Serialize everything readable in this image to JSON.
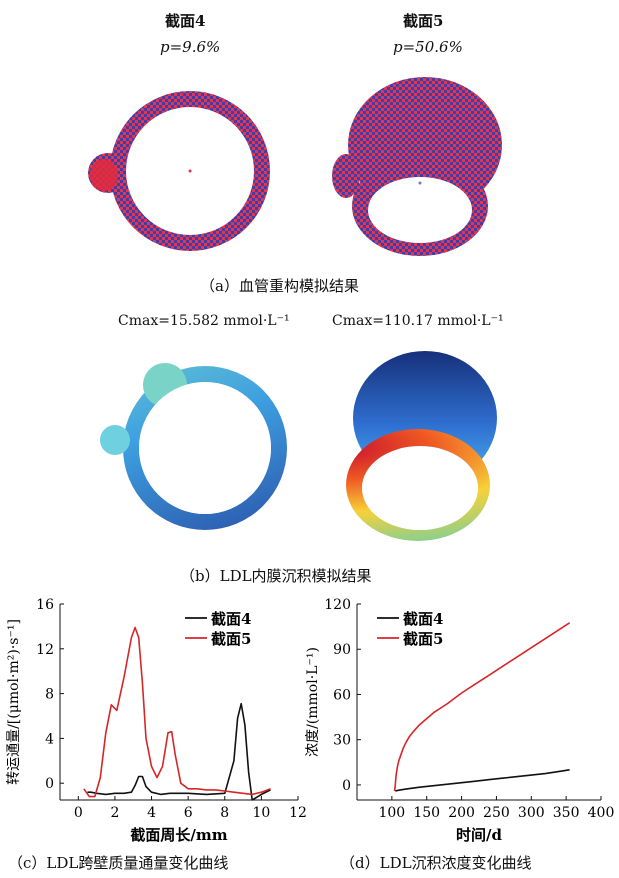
{
  "panel_a": {
    "s4_title": "截面4",
    "s4_p": "p=9.6%",
    "s5_title": "截面5",
    "s5_p": "p=50.6%",
    "caption": "（a）血管重构模拟结果"
  },
  "panel_b": {
    "cmax_left": "Cmax=15.582 mmol·L⁻¹",
    "cmax_right": "Cmax=110.17 mmol·L⁻¹",
    "caption": "（b）LDL内膜沉积模拟结果"
  },
  "panel_c_caption": "（c）LDL跨壁质量通量变化曲线",
  "panel_d_caption": "（d）LDL沉积浓度变化曲线",
  "colors": {
    "s4": "#111111",
    "s5": "#d62728"
  },
  "chart_data": [
    {
      "type": "line",
      "xlabel": "截面周长/mm",
      "ylabel": "转运通量/[(μmol·m²)·s⁻¹]",
      "xlim": [
        -1,
        12
      ],
      "ylim": [
        -1.5,
        16
      ],
      "xticks": [
        0,
        2,
        4,
        6,
        8,
        10,
        12
      ],
      "yticks": [
        0,
        4,
        8,
        12,
        16
      ],
      "legend": "top-right",
      "series": [
        {
          "name": "截面4",
          "color": "#111111",
          "x": [
            0.5,
            0.7,
            1.0,
            1.5,
            2.0,
            2.5,
            2.9,
            3.1,
            3.3,
            3.5,
            3.7,
            4.0,
            4.5,
            5.0,
            6.0,
            7.0,
            8.0,
            8.5,
            8.7,
            8.9,
            9.1,
            9.3,
            9.5,
            10.0,
            10.5
          ],
          "y": [
            -0.8,
            -0.8,
            -0.9,
            -1.0,
            -0.9,
            -0.9,
            -0.8,
            -0.2,
            0.6,
            0.6,
            -0.3,
            -0.8,
            -1.0,
            -0.9,
            -0.9,
            -1.0,
            -0.9,
            2.0,
            5.8,
            7.1,
            5.2,
            1.0,
            -1.5,
            -1.0,
            -0.6
          ]
        },
        {
          "name": "截面5",
          "color": "#d62728",
          "x": [
            0.3,
            0.6,
            0.9,
            1.2,
            1.5,
            1.8,
            2.1,
            2.5,
            2.9,
            3.1,
            3.3,
            3.5,
            3.7,
            4.0,
            4.3,
            4.6,
            4.9,
            5.1,
            5.3,
            5.6,
            6.0,
            6.5,
            7.0,
            7.5,
            8.0,
            8.5,
            9.0,
            9.5,
            10.0,
            10.5
          ],
          "y": [
            -0.5,
            -1.2,
            -1.2,
            0.5,
            4.5,
            7.0,
            6.5,
            9.5,
            13.0,
            13.9,
            13.0,
            9.0,
            4.0,
            1.5,
            0.5,
            1.5,
            4.5,
            4.6,
            2.5,
            0.0,
            -0.5,
            -0.5,
            -0.6,
            -0.6,
            -0.7,
            -0.8,
            -0.9,
            -1.0,
            -0.8,
            -0.5
          ]
        }
      ]
    },
    {
      "type": "line",
      "xlabel": "时间/d",
      "ylabel": "浓度/(mmol·L⁻¹)",
      "xlim": [
        50,
        400
      ],
      "ylim": [
        -10,
        120
      ],
      "xticks": [
        100,
        150,
        200,
        250,
        300,
        350,
        400
      ],
      "yticks": [
        0,
        30,
        60,
        90,
        120
      ],
      "legend": "top-left",
      "series": [
        {
          "name": "截面4",
          "color": "#111111",
          "x": [
            105,
            110,
            120,
            140,
            160,
            180,
            200,
            220,
            240,
            260,
            280,
            300,
            320,
            340,
            355
          ],
          "y": [
            -4,
            -3.5,
            -2.8,
            -1.5,
            -0.5,
            0.5,
            1.5,
            2.5,
            3.5,
            4.5,
            5.5,
            6.5,
            7.5,
            9.0,
            10.0
          ]
        },
        {
          "name": "截面5",
          "color": "#d62728",
          "x": [
            104,
            105,
            106,
            108,
            110,
            113,
            116,
            120,
            125,
            130,
            140,
            150,
            160,
            180,
            200,
            220,
            240,
            260,
            280,
            300,
            320,
            340,
            355
          ],
          "y": [
            -4,
            0,
            6,
            12,
            16,
            20,
            24,
            28,
            32,
            35,
            40,
            44,
            48,
            54,
            61,
            67,
            73,
            79,
            85,
            91,
            97,
            103,
            107.5
          ]
        }
      ]
    }
  ]
}
